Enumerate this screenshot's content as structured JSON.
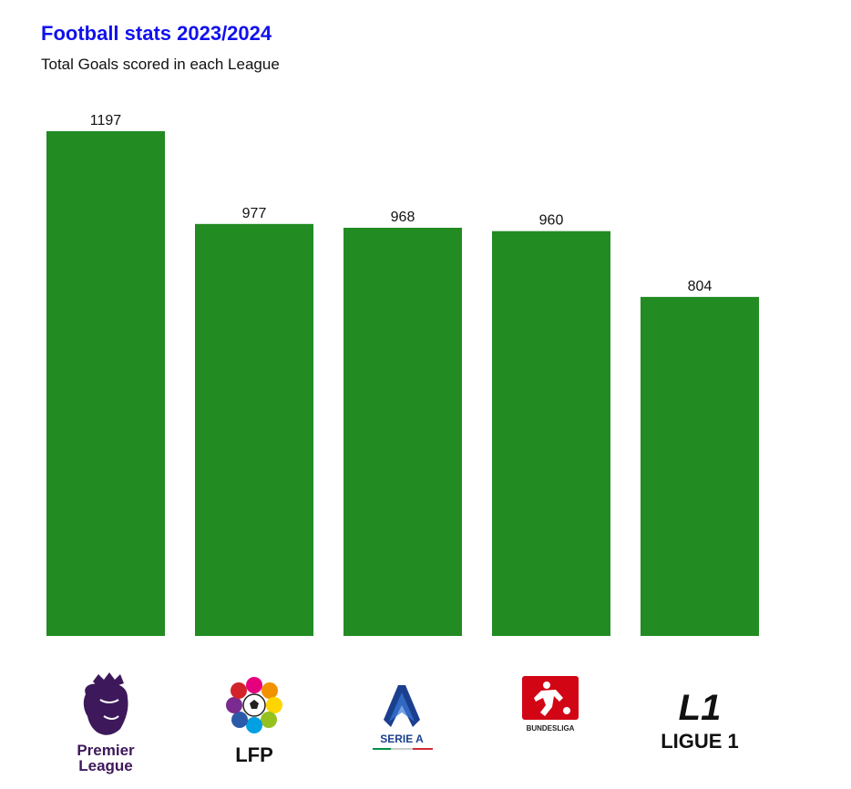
{
  "chart_data": {
    "type": "bar",
    "title": "Football stats 2023/2024",
    "subtitle": "Total Goals scored in each League",
    "categories": [
      "Premier League",
      "LFP",
      "SERIE A",
      "BUNDESLIGA",
      "LIGUE 1"
    ],
    "values": [
      1197,
      977,
      968,
      960,
      804
    ],
    "ylim": [
      0,
      1197
    ],
    "grid": false,
    "xlabel": "",
    "ylabel": "",
    "bar_color": "#228b22"
  },
  "logos": {
    "premier_league": {
      "line1": "Premier",
      "line2": "League",
      "color": "#3d195b"
    },
    "lfp": {
      "text": "LFP"
    },
    "serie_a": {
      "text": "SERIE A",
      "color": "#1b3f8f"
    },
    "bundesliga": {
      "text": "BUNDESLIGA",
      "color": "#d20515"
    },
    "ligue1": {
      "text": "LIGUE 1",
      "mark": "L1"
    }
  }
}
